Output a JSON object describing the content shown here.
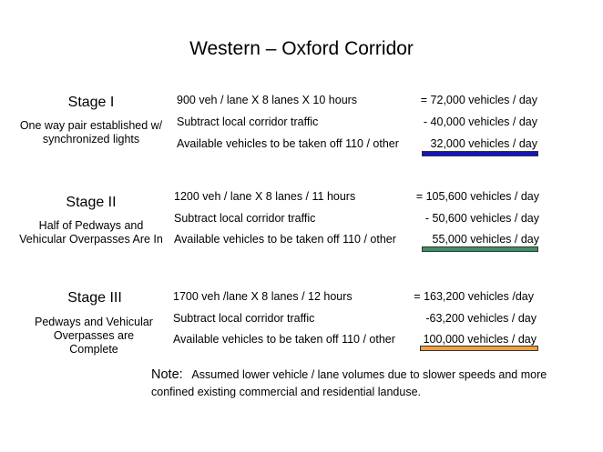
{
  "title": "Western – Oxford  Corridor",
  "stages": [
    {
      "name": "Stage  I",
      "description": "One way pair established w/ synchronized lights",
      "rows": [
        {
          "label": "900 veh / lane X 8 lanes X 10 hours",
          "value": "=  72,000 vehicles / day"
        },
        {
          "label": "Subtract local corridor traffic",
          "value": "- 40,000 vehicles / day"
        },
        {
          "label": "Available vehicles to be taken off 110 / other",
          "value": "32,000 vehicles / day"
        }
      ],
      "bar_color": "#1515c0"
    },
    {
      "name": "Stage   II",
      "description": "Half of Pedways and Vehicular Overpasses Are In",
      "rows": [
        {
          "label": "1200 veh / lane X 8 lanes / 11 hours",
          "value": "= 105,600 vehicles / day"
        },
        {
          "label": "Subtract local corridor traffic",
          "value": "- 50,600 vehicles / day"
        },
        {
          "label": "Available vehicles to be taken off 110 / other",
          "value": "55,000 vehicles / day"
        }
      ],
      "bar_color": "#3f8f66"
    },
    {
      "name": "Stage   III",
      "description": "Pedways and Vehicular Overpasses are Complete",
      "rows": [
        {
          "label": "1700 veh /lane X 8 lanes / 12 hours",
          "value": "= 163,200 vehicles /day"
        },
        {
          "label": "Subtract local corridor traffic",
          "value": "-63,200 vehicles / day"
        },
        {
          "label": "Available vehicles to be taken off 110 / other",
          "value": "100,000 vehicles / day"
        }
      ],
      "bar_color": "#f0a040"
    }
  ],
  "note": {
    "label": "Note:",
    "text": "Assumed lower vehicle / lane volumes due to slower speeds and more confined existing commercial and residential landuse."
  }
}
